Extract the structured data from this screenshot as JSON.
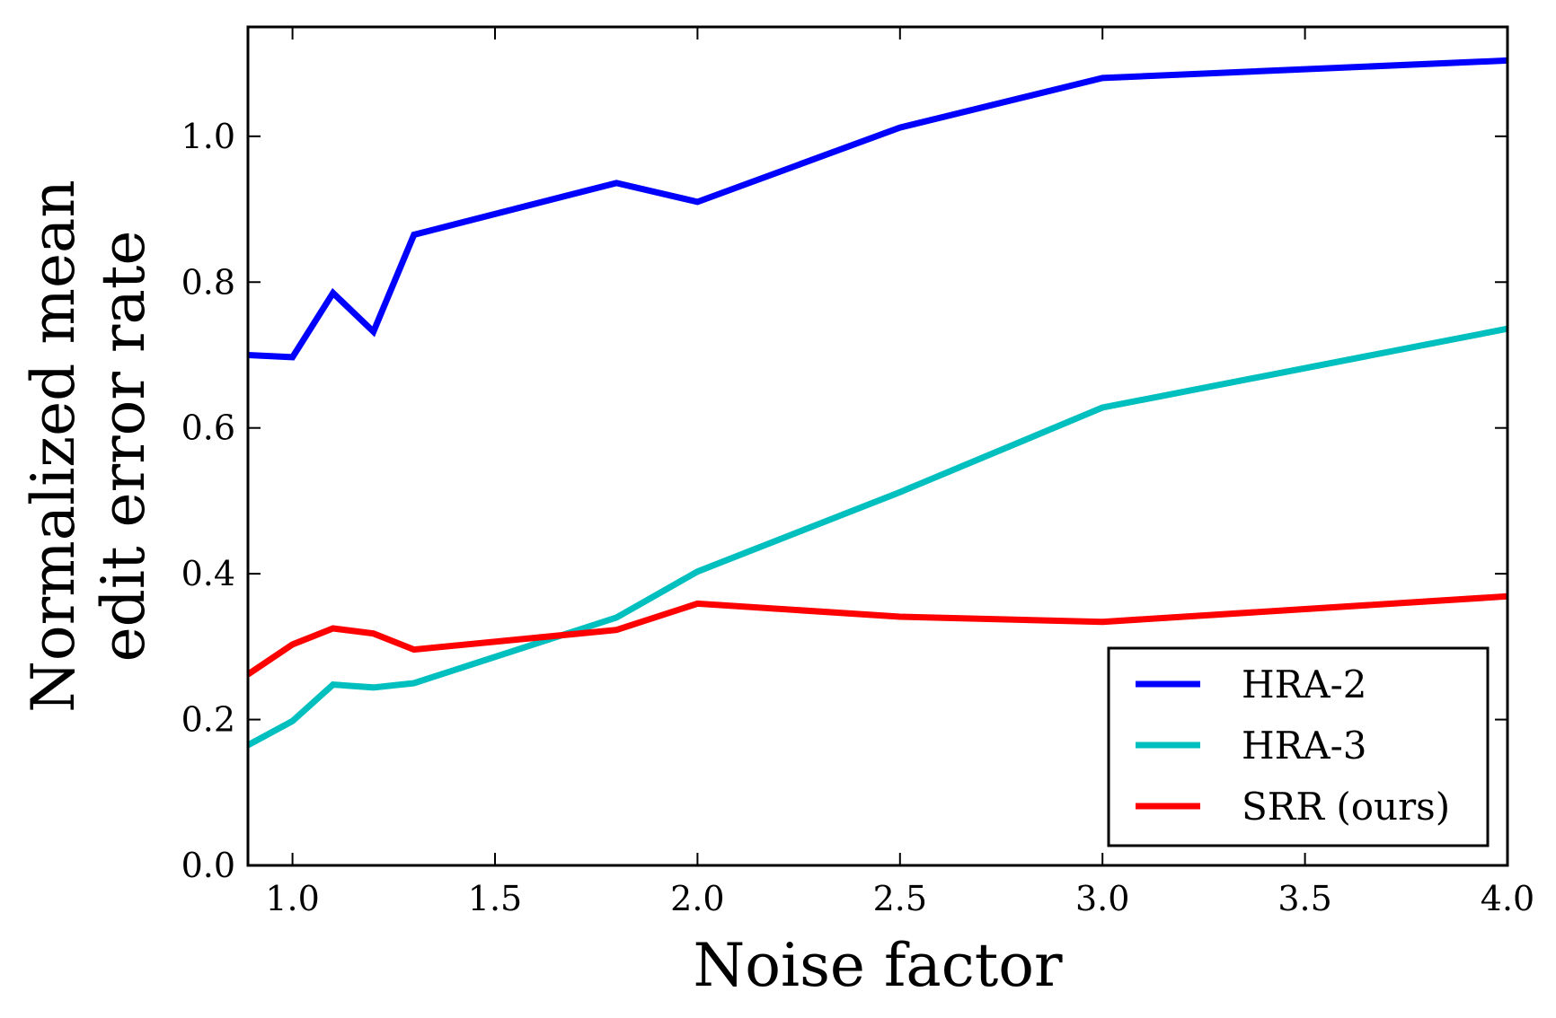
{
  "chart_data": {
    "type": "line",
    "xlabel": "Noise factor",
    "ylabel_lines": [
      "Normalized mean",
      "edit error rate"
    ],
    "xlim": [
      0.89,
      4.0
    ],
    "ylim": [
      0.0,
      1.15
    ],
    "xticks": [
      1.0,
      1.5,
      2.0,
      2.5,
      3.0,
      3.5,
      4.0
    ],
    "xtick_labels": [
      "1.0",
      "1.5",
      "2.0",
      "2.5",
      "3.0",
      "3.5",
      "4.0"
    ],
    "yticks": [
      0.0,
      0.2,
      0.4,
      0.6,
      0.8,
      1.0
    ],
    "ytick_labels": [
      "0.0",
      "0.2",
      "0.4",
      "0.6",
      "0.8",
      "1.0"
    ],
    "grid": false,
    "legend_position": "bottom-right",
    "x": [
      0.89,
      1.0,
      1.1,
      1.2,
      1.3,
      1.8,
      2.0,
      2.5,
      3.0,
      4.0
    ],
    "series": [
      {
        "name": "HRA-2",
        "color": "#0000ff",
        "values": [
          0.7,
          0.697,
          0.785,
          0.732,
          0.865,
          0.936,
          0.91,
          1.012,
          1.08,
          1.104
        ]
      },
      {
        "name": "HRA-3",
        "color": "#00bfbf",
        "values": [
          0.165,
          0.198,
          0.248,
          0.244,
          0.25,
          0.34,
          0.403,
          0.512,
          0.628,
          0.736
        ]
      },
      {
        "name": "SRR (ours)",
        "color": "#ff0000",
        "values": [
          0.262,
          0.303,
          0.325,
          0.318,
          0.296,
          0.323,
          0.359,
          0.341,
          0.334,
          0.369
        ]
      }
    ]
  }
}
